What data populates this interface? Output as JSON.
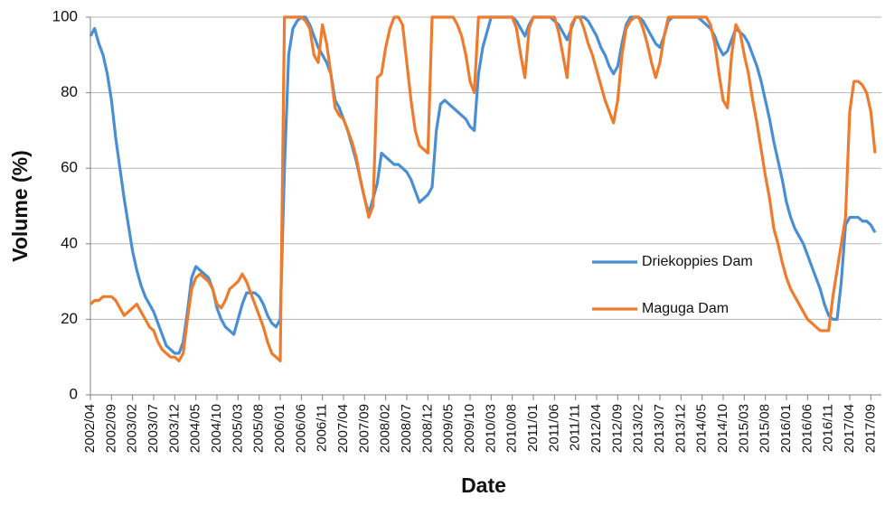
{
  "chart_data": {
    "type": "line",
    "x_label": "Date",
    "y_label": "Volume (%)",
    "categories": [
      "2002/04",
      null,
      null,
      null,
      null,
      "2002/09",
      null,
      null,
      null,
      null,
      "2003/02",
      null,
      null,
      null,
      null,
      "2003/07",
      null,
      null,
      null,
      null,
      "2003/12",
      null,
      null,
      null,
      null,
      "2004/05",
      null,
      null,
      null,
      null,
      "2004/10",
      null,
      null,
      null,
      null,
      "2005/03",
      null,
      null,
      null,
      null,
      "2005/08",
      null,
      null,
      null,
      null,
      "2006/01",
      null,
      null,
      null,
      null,
      "2006/06",
      null,
      null,
      null,
      null,
      "2006/11",
      null,
      null,
      null,
      null,
      "2007/04",
      null,
      null,
      null,
      null,
      "2007/09",
      null,
      null,
      null,
      null,
      "2008/02",
      null,
      null,
      null,
      null,
      "2008/07",
      null,
      null,
      null,
      null,
      "2008/12",
      null,
      null,
      null,
      null,
      "2009/05",
      null,
      null,
      null,
      null,
      "2009/10",
      null,
      null,
      null,
      null,
      "2010/03",
      null,
      null,
      null,
      null,
      "2010/08",
      null,
      null,
      null,
      null,
      "2011/01",
      null,
      null,
      null,
      null,
      "2011/06",
      null,
      null,
      null,
      null,
      "2011/11",
      null,
      null,
      null,
      null,
      "2012/04",
      null,
      null,
      null,
      null,
      "2012/09",
      null,
      null,
      null,
      null,
      "2013/02",
      null,
      null,
      null,
      null,
      "2013/07",
      null,
      null,
      null,
      null,
      "2013/12",
      null,
      null,
      null,
      null,
      "2014/05",
      null,
      null,
      null,
      null,
      "2014/10",
      null,
      null,
      null,
      null,
      "2015/03",
      null,
      null,
      null,
      null,
      "2015/08",
      null,
      null,
      null,
      null,
      "2016/01",
      null,
      null,
      null,
      null,
      "2016/06",
      null,
      null,
      null,
      null,
      "2016/11",
      null,
      null,
      null,
      null,
      "2017/04",
      null,
      null,
      null,
      null,
      "2017/09",
      null
    ],
    "series": [
      {
        "name": "Driekoppies Dam",
        "color": "#4a8fd3",
        "values": [
          95,
          97,
          93,
          90,
          85,
          78,
          68,
          60,
          52,
          45,
          38,
          33,
          29,
          26,
          24,
          22,
          19,
          16,
          13,
          12,
          11,
          11,
          14,
          22,
          31,
          34,
          33,
          32,
          31,
          28,
          23,
          20,
          18,
          17,
          16,
          20,
          24,
          27,
          27,
          27,
          26,
          24,
          21,
          19,
          18,
          20,
          60,
          90,
          97,
          99,
          100,
          100,
          98,
          95,
          92,
          90,
          88,
          85,
          78,
          76,
          73,
          70,
          66,
          62,
          57,
          52,
          48,
          52,
          56,
          64,
          63,
          62,
          61,
          61,
          60,
          59,
          57,
          54,
          51,
          52,
          53,
          55,
          70,
          77,
          78,
          77,
          76,
          75,
          74,
          73,
          71,
          70,
          85,
          92,
          96,
          100,
          100,
          100,
          100,
          100,
          100,
          99,
          97,
          95,
          98,
          100,
          100,
          100,
          100,
          100,
          99,
          98,
          96,
          94,
          97,
          100,
          100,
          100,
          99,
          97,
          95,
          92,
          90,
          87,
          85,
          87,
          93,
          98,
          100,
          100,
          100,
          99,
          97,
          95,
          93,
          92,
          95,
          99,
          100,
          100,
          100,
          100,
          100,
          100,
          100,
          99,
          98,
          97,
          95,
          92,
          90,
          91,
          94,
          97,
          96,
          95,
          93,
          90,
          87,
          83,
          78,
          73,
          67,
          62,
          57,
          51,
          47,
          44,
          42,
          40,
          37,
          34,
          31,
          28,
          24,
          21,
          20,
          20,
          30,
          45,
          47,
          47,
          47,
          46,
          46,
          45,
          43
        ]
      },
      {
        "name": "Maguga Dam",
        "color": "#ef7b2d",
        "values": [
          24,
          25,
          25,
          26,
          26,
          26,
          25,
          23,
          21,
          22,
          23,
          24,
          22,
          20,
          18,
          17,
          14,
          12,
          11,
          10,
          10,
          9,
          11,
          20,
          28,
          31,
          32,
          31,
          30,
          28,
          24,
          23,
          25,
          28,
          29,
          30,
          32,
          30,
          27,
          24,
          21,
          18,
          14,
          11,
          10,
          9,
          100,
          100,
          100,
          100,
          100,
          99,
          97,
          90,
          88,
          98,
          93,
          85,
          76,
          74,
          73,
          70,
          67,
          63,
          57,
          52,
          47,
          50,
          84,
          85,
          92,
          97,
          100,
          100,
          98,
          88,
          78,
          70,
          66,
          65,
          64,
          100,
          100,
          100,
          100,
          100,
          100,
          98,
          95,
          90,
          83,
          80,
          100,
          100,
          100,
          100,
          100,
          100,
          100,
          100,
          100,
          97,
          90,
          84,
          97,
          100,
          100,
          100,
          100,
          100,
          100,
          96,
          90,
          84,
          98,
          100,
          100,
          97,
          93,
          90,
          86,
          82,
          78,
          75,
          72,
          78,
          90,
          97,
          99,
          100,
          100,
          97,
          93,
          88,
          84,
          88,
          95,
          100,
          100,
          100,
          100,
          100,
          100,
          100,
          100,
          100,
          100,
          98,
          93,
          85,
          78,
          76,
          90,
          98,
          96,
          90,
          85,
          78,
          72,
          65,
          58,
          52,
          44,
          40,
          35,
          31,
          28,
          26,
          24,
          22,
          20,
          19,
          18,
          17,
          17,
          17,
          26,
          33,
          40,
          47,
          75,
          83,
          83,
          82,
          80,
          75,
          64
        ]
      }
    ],
    "ylim": [
      0,
      100
    ],
    "yticks": [
      0,
      20,
      40,
      60,
      80,
      100
    ],
    "grid": true,
    "legend": "right"
  }
}
